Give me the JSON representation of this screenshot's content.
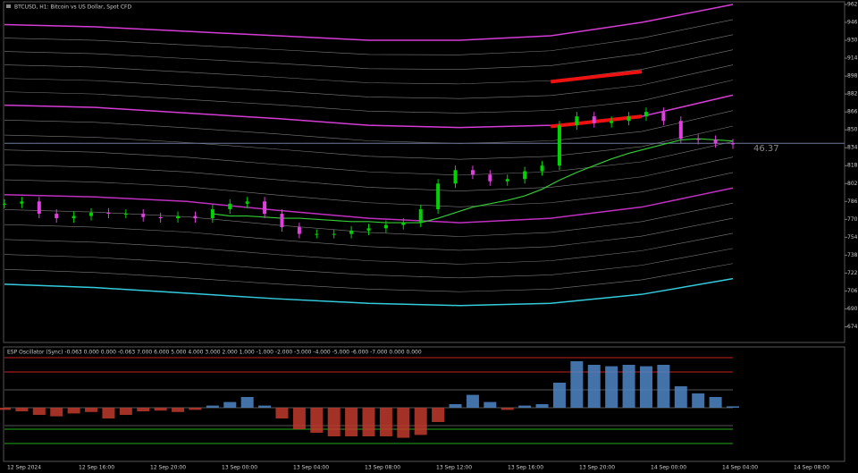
{
  "header": {
    "title": "BTCUSD, H1: Bitcoin vs US Dollar, Spot CFD"
  },
  "chart_data": [
    {
      "type": "candle-line",
      "ylim": [
        660,
        966
      ],
      "yticks": [
        962,
        946,
        930,
        914,
        898,
        882,
        866,
        850,
        834,
        818,
        802,
        786,
        770,
        754,
        738,
        722,
        706,
        690,
        674
      ],
      "current_price": 838,
      "annotation": "46.37",
      "colors": {
        "up": "#00d400",
        "down": "#e040e0",
        "current": "#6a7a99",
        "gray_band": "#7a7a7a"
      },
      "series": [
        {
          "color": "#00d400",
          "values": [
            784,
            786,
            775,
            771,
            773,
            776,
            775,
            775,
            772,
            771,
            773,
            771,
            779,
            784,
            786,
            775,
            763,
            757,
            757,
            757,
            760,
            762,
            765,
            767,
            779,
            802,
            814,
            810,
            804,
            806,
            813,
            818,
            854,
            862,
            856,
            858,
            862,
            866,
            858,
            842,
            841,
            838,
            837
          ]
        },
        {
          "color": "#33cc33",
          "values": [
            null,
            null,
            null,
            null,
            null,
            null,
            null,
            null,
            null,
            null,
            null,
            null,
            775,
            773,
            773,
            772,
            771,
            771,
            770,
            769,
            768,
            768,
            767,
            767,
            767,
            771,
            776,
            781,
            784,
            787,
            791,
            797,
            805,
            812,
            818,
            824,
            829,
            833,
            837,
            841,
            842,
            841,
            840
          ]
        }
      ],
      "bands": [
        {
          "color": "#d63cd6",
          "values": [
            944,
            942,
            938,
            934,
            930,
            930,
            934,
            946,
            962
          ]
        },
        {
          "color": "#d63cd6",
          "values": [
            872,
            870,
            865,
            860,
            854,
            852,
            854,
            862,
            881
          ]
        },
        {
          "color": "#c030c0",
          "values": [
            792,
            790,
            786,
            778,
            771,
            767,
            771,
            781,
            798
          ]
        },
        {
          "color": "#33ccdd",
          "values": [
            712,
            709,
            704,
            699,
            695,
            693,
            695,
            703,
            717
          ]
        },
        {
          "color": "#ee1111",
          "values": [
            null,
            null,
            null,
            null,
            null,
            null,
            893,
            902,
            null
          ]
        },
        {
          "color": "#ee1111",
          "values": [
            null,
            null,
            null,
            null,
            null,
            null,
            853,
            862,
            null
          ]
        }
      ],
      "x_labels": [
        "12 Sep 2024",
        "12 Sep 16:00",
        "12 Sep 20:00",
        "13 Sep 00:00",
        "13 Sep 04:00",
        "13 Sep 08:00",
        "13 Sep 12:00",
        "13 Sep 16:00",
        "13 Sep 20:00",
        "14 Sep 00:00",
        "14 Sep 04:00",
        "14 Sep 08:00"
      ]
    },
    {
      "type": "oscillator",
      "title": "ESP Oscillator (Sync) -0.063 0.000 0.000 -0.063 7.000 6.000 5.000 4.000 3.000 2.000 1.000 -1.000 -2.000 -3.000 -4.000 -5.000 -6.000 -7.000 0.000 0.000",
      "ylim": [
        -8,
        8
      ],
      "levels": [
        {
          "value": 7,
          "color": "#cc2222"
        },
        {
          "value": 5,
          "color": "#cc2222"
        },
        {
          "value": 2.5,
          "color": "#555555"
        },
        {
          "value": 0,
          "color": "#555555"
        },
        {
          "value": -2.5,
          "color": "#555555"
        },
        {
          "value": -3,
          "color": "#22aa22"
        },
        {
          "value": -5,
          "color": "#22aa22"
        }
      ],
      "colors": {
        "up": "#4f86c6",
        "down": "#c0392b"
      },
      "values": [
        -0.3,
        -0.5,
        -1,
        -1.2,
        -0.8,
        -0.6,
        -1.5,
        -1,
        -0.5,
        -0.4,
        -0.6,
        -0.3,
        0.3,
        0.8,
        1.5,
        0.3,
        -1.5,
        -3,
        -3.5,
        -4,
        -4,
        -4,
        -4,
        -4.2,
        -3.8,
        -2,
        0.5,
        1.8,
        0.8,
        -0.3,
        0.3,
        0.5,
        3.5,
        6.5,
        6,
        5.8,
        6,
        5.8,
        6,
        3,
        2,
        1.5,
        0.2
      ]
    }
  ]
}
